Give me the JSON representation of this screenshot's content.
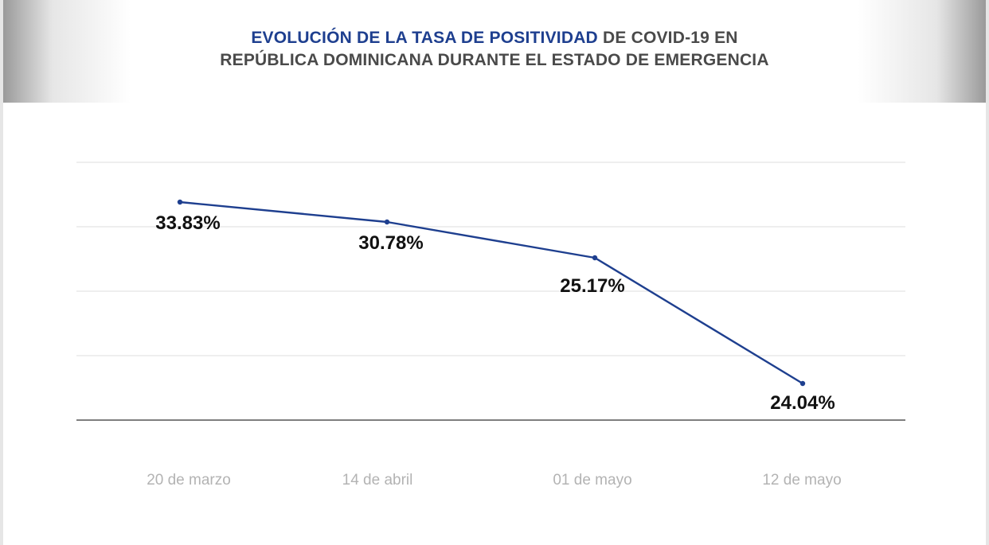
{
  "title": {
    "line1_highlight": "EVOLUCIÓN DE LA TASA DE POSITIVIDAD",
    "line1_rest": " DE COVID-19 EN",
    "line2": "REPÚBLICA DOMINICANA DURANTE EL ESTADO DE EMERGENCIA"
  },
  "colors": {
    "line": "#1e3f8f",
    "title_highlight": "#1e3f8f",
    "title_text": "#4a4a4a",
    "grid": "#e3e3e3",
    "baseline": "#333333",
    "tick_text": "#b3b3b3",
    "data_label": "#111111"
  },
  "chart_data": {
    "type": "line",
    "title": "EVOLUCIÓN DE LA TASA DE POSITIVIDAD DE COVID-19 EN REPÚBLICA DOMINICANA DURANTE EL ESTADO DE EMERGENCIA",
    "categories": [
      "20 de marzo",
      "14 de abril",
      "01 de mayo",
      "12 de mayo"
    ],
    "series": [
      {
        "values": [
          33.83,
          30.78,
          25.17,
          24.04
        ]
      }
    ],
    "data_labels": [
      "33.83%",
      "30.78%",
      "25.17%",
      "24.04%"
    ],
    "xlabel": "",
    "ylabel": "",
    "grid": true,
    "legend": "none"
  }
}
